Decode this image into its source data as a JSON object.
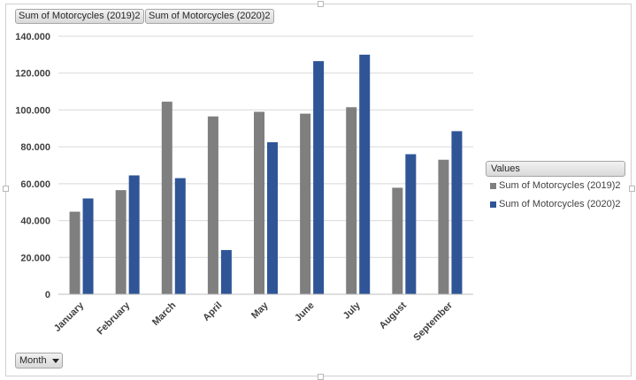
{
  "colors": {
    "series_2019": "#7f7f7f",
    "series_2020": "#2f5597",
    "gridline": "#d9d9d9"
  },
  "field_buttons": [
    "Sum of Motorcycles (2019)2",
    "Sum of Motorcycles (2020)2"
  ],
  "legend": {
    "header": "Values",
    "items": [
      {
        "label": "Sum of Motorcycles (2019)2",
        "color": "#7f7f7f"
      },
      {
        "label": "Sum of Motorcycles (2020)2",
        "color": "#2f5597"
      }
    ]
  },
  "axis_field_button": {
    "label": "Month",
    "icon": "dropdown-arrow-icon"
  },
  "chart_data": {
    "type": "bar",
    "categories": [
      "January",
      "February",
      "March",
      "April",
      "May",
      "June",
      "July",
      "August",
      "September"
    ],
    "series": [
      {
        "name": "Sum of Motorcycles (2019)2",
        "values": [
          44800,
          56500,
          104500,
          96500,
          99000,
          98000,
          101500,
          57800,
          73000
        ]
      },
      {
        "name": "Sum of Motorcycles (2020)2",
        "values": [
          52000,
          64500,
          63000,
          24000,
          82500,
          126500,
          130000,
          76000,
          88500
        ]
      }
    ],
    "ylim": [
      0,
      140000
    ],
    "yticks": [
      0,
      20000,
      40000,
      60000,
      80000,
      100000,
      120000,
      140000
    ],
    "ytick_labels": [
      "0",
      "20.000",
      "40.000",
      "60.000",
      "80.000",
      "100.000",
      "120.000",
      "140.000"
    ],
    "grid": true,
    "legend_position": "right"
  }
}
